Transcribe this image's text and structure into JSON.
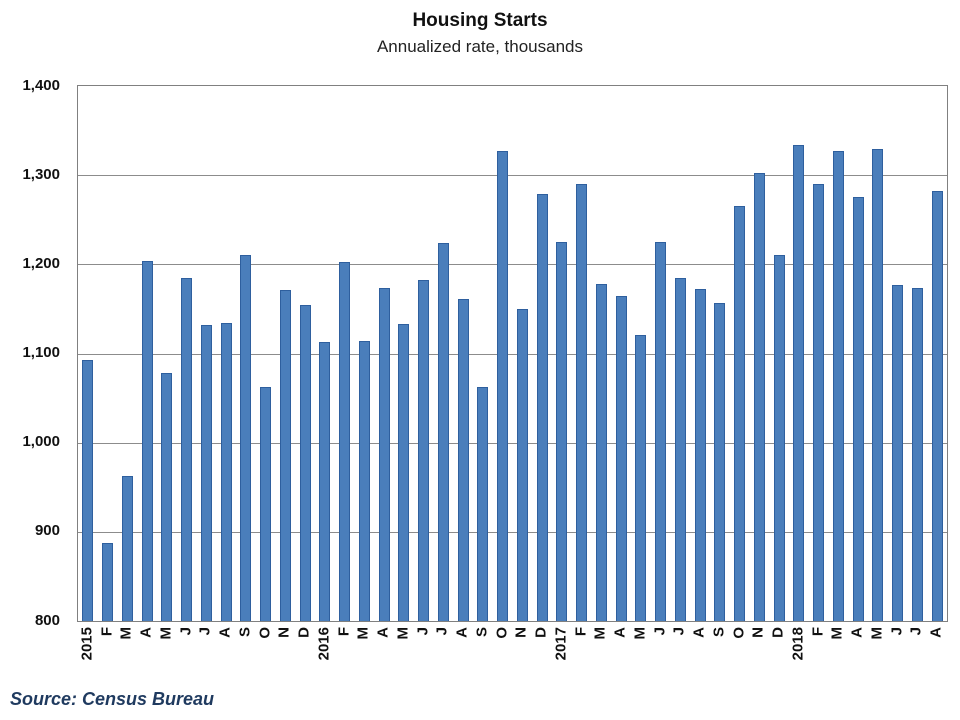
{
  "header": {
    "title": "Housing Starts",
    "subtitle": "Annualized rate, thousands"
  },
  "footer": {
    "source": "Source: Census Bureau"
  },
  "colors": {
    "bar_fill": "#4a7ebb",
    "bar_border": "#2e5f9e",
    "gridline": "#8c8c8c",
    "plot_border": "#808080",
    "source_text": "#1f3a5f",
    "title_text": "#111111"
  },
  "chart_data": {
    "type": "bar",
    "title": "Housing Starts",
    "subtitle": "Annualized rate, thousands",
    "source": "Source: Census Bureau",
    "xlabel": "",
    "ylabel": "",
    "ylim": [
      800,
      1400
    ],
    "ytick_interval": 100,
    "ytick_labels": [
      "1,400",
      "1,300",
      "1,200",
      "1,100",
      "1,000",
      "900",
      "800"
    ],
    "grid": "horizontal",
    "legend": "none",
    "categories": [
      "2015",
      "F",
      "M",
      "A",
      "M",
      "J",
      "J",
      "A",
      "S",
      "O",
      "N",
      "D",
      "2016",
      "F",
      "M",
      "A",
      "M",
      "J",
      "J",
      "A",
      "S",
      "O",
      "N",
      "D",
      "2017",
      "F",
      "M",
      "A",
      "M",
      "J",
      "J",
      "A",
      "S",
      "O",
      "N",
      "D",
      "2018",
      "F",
      "M",
      "A",
      "M",
      "J",
      "J",
      "A"
    ],
    "values": [
      1093,
      888,
      963,
      1204,
      1078,
      1185,
      1132,
      1134,
      1211,
      1062,
      1171,
      1155,
      1113,
      1203,
      1114,
      1173,
      1133,
      1183,
      1224,
      1161,
      1062,
      1327,
      1150,
      1279,
      1225,
      1290,
      1178,
      1165,
      1121,
      1225,
      1185,
      1172,
      1157,
      1265,
      1303,
      1210,
      1334,
      1290,
      1327,
      1276,
      1329,
      1177,
      1174,
      1282
    ]
  }
}
